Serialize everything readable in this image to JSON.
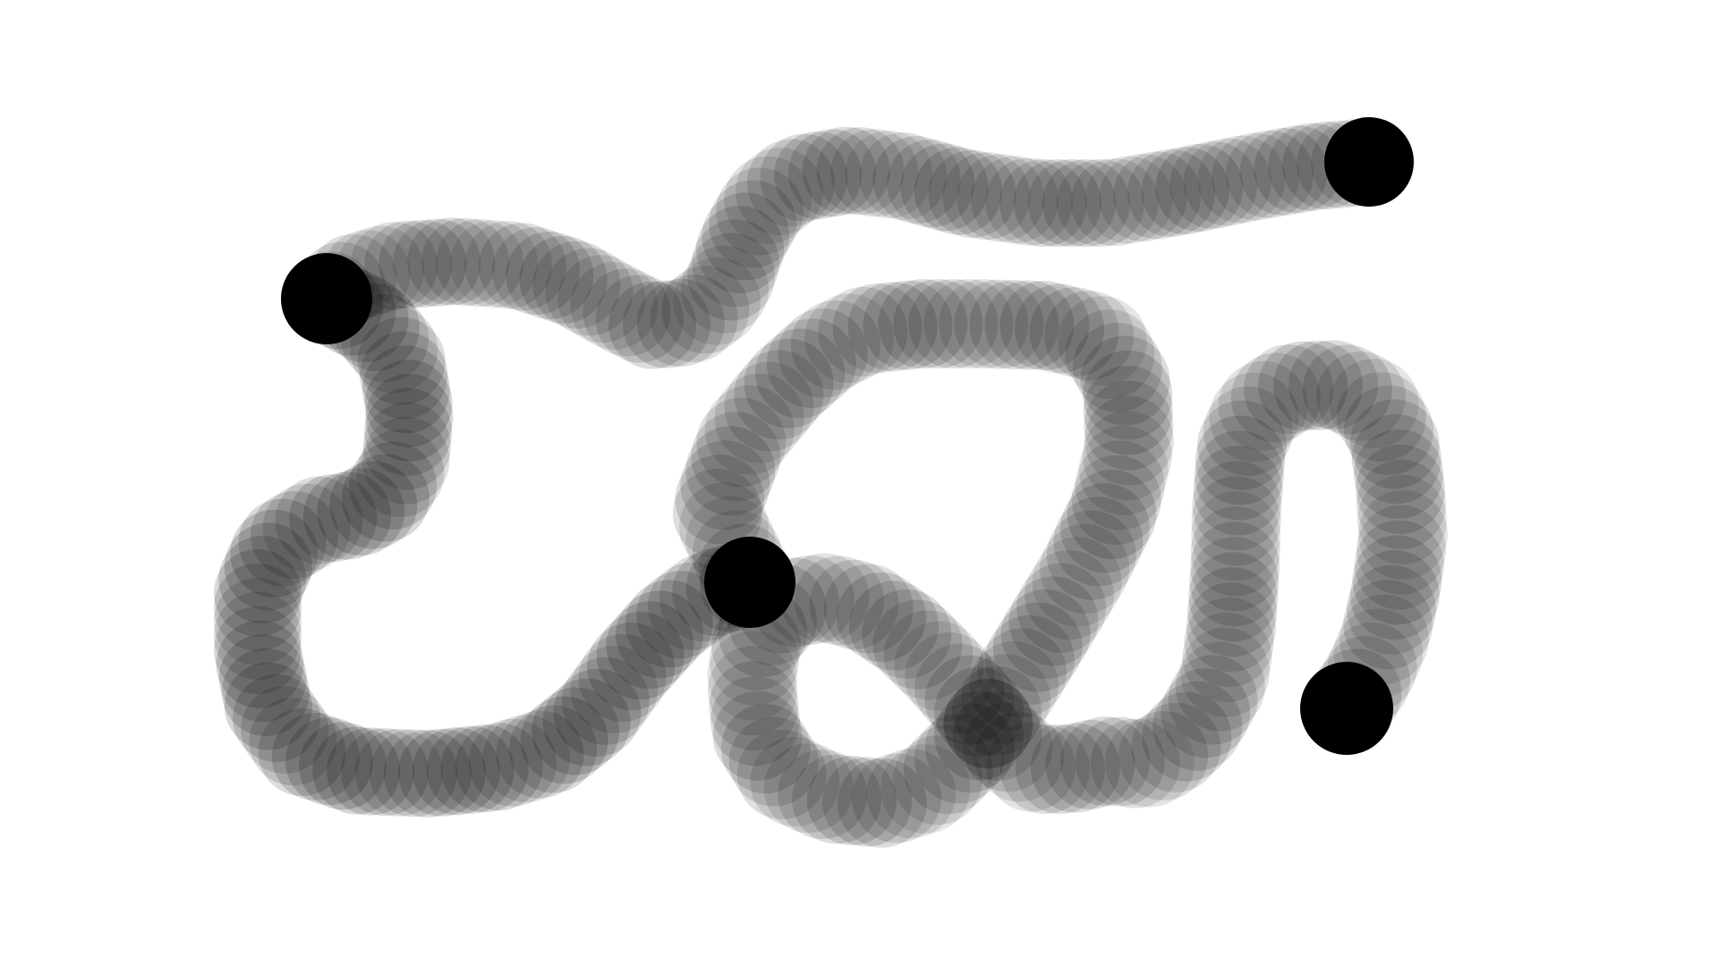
{
  "canvas": {
    "background": "#ffffff",
    "stamp_color": "#000000"
  },
  "strokes": [
    {
      "name": "top-stroke",
      "stamp_opacity": 0.12,
      "anchors": [
        "start",
        "end"
      ]
    },
    {
      "name": "middle-stroke",
      "stamp_opacity": 0.14,
      "anchors": [
        "start",
        "end"
      ]
    },
    {
      "name": "loop-stroke",
      "stamp_opacity": 0.12,
      "anchors": [
        "end"
      ]
    },
    {
      "name": "right-stroke",
      "stamp_opacity": 0.13,
      "anchors": [
        "end"
      ]
    }
  ]
}
